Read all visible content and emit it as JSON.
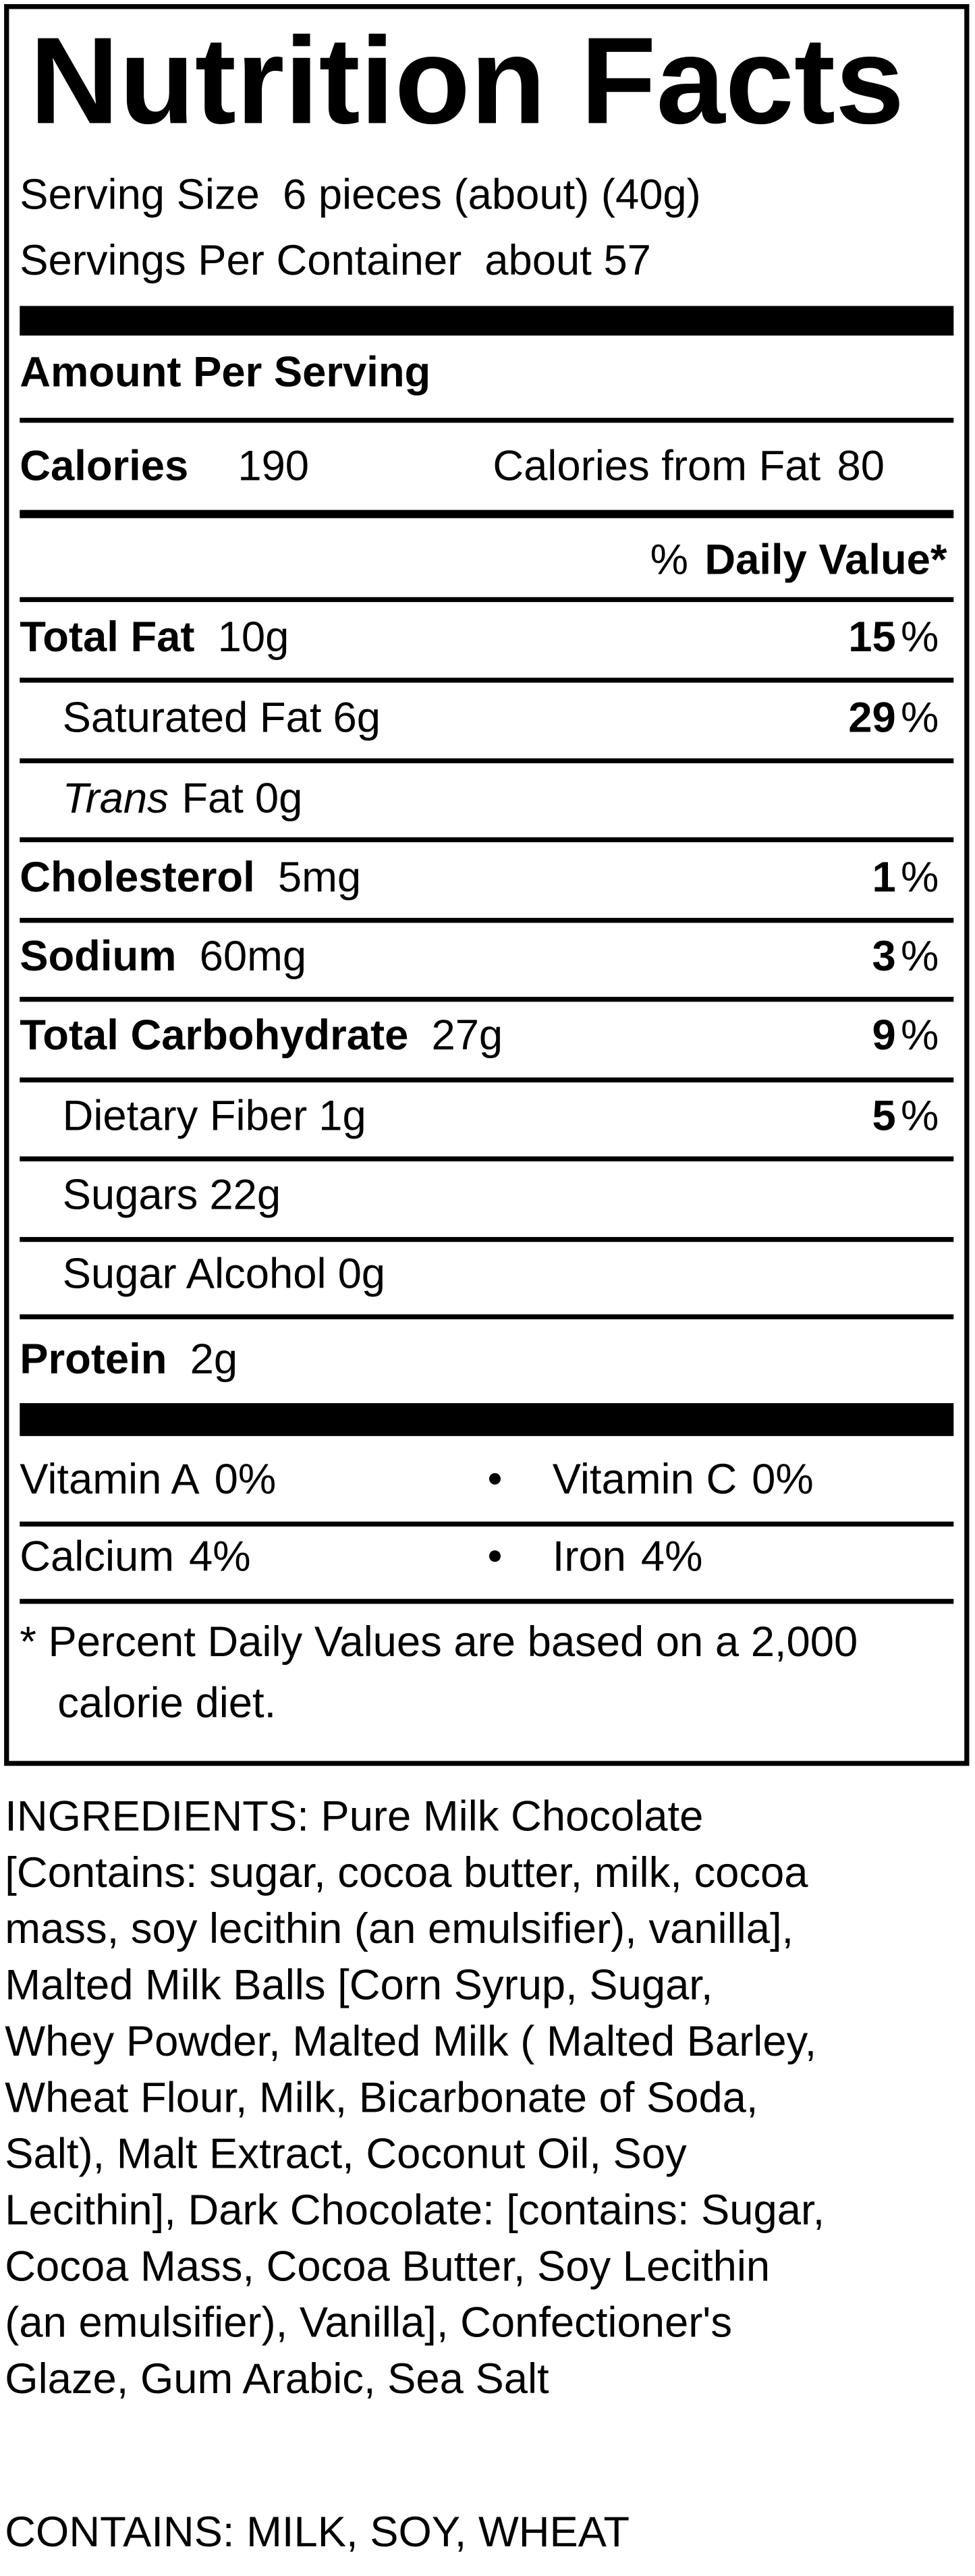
{
  "label": {
    "title": "Nutrition Facts",
    "serving_size_label": "Serving Size",
    "serving_size": "6  pieces (about)  (40g)",
    "servings_label": "Servings Per Container",
    "servings": "about 57",
    "amount_per_serving": "Amount Per Serving",
    "calories_label": "Calories",
    "calories": 190,
    "calories_from_fat_label": "Calories from Fat",
    "calories_from_fat": 80,
    "percent_sign": "%",
    "daily_value_label": "Daily Value*",
    "nutrients": [
      {
        "name": "Total Fat",
        "amount": "10g",
        "dv": 15,
        "bold": true
      },
      {
        "name": "Saturated Fat",
        "amount": "6g",
        "dv": 29,
        "indent": true
      },
      {
        "prefix": "Trans",
        "name": "Fat",
        "amount": "0g",
        "indent": true
      },
      {
        "name": "Cholesterol",
        "amount": "5mg",
        "dv": 1,
        "bold": true
      },
      {
        "name": "Sodium",
        "amount": "60mg",
        "dv": 3,
        "bold": true
      },
      {
        "name": "Total Carbohydrate",
        "amount": "27g",
        "dv": 9,
        "bold": true
      },
      {
        "name": "Dietary Fiber",
        "amount": "1g",
        "dv": 5,
        "indent": true
      },
      {
        "name": "Sugars",
        "amount": "22g",
        "indent": true
      },
      {
        "name": "Sugar Alcohol",
        "amount": "0g",
        "indent": true
      },
      {
        "name": "Protein",
        "amount": "2g",
        "bold": true
      }
    ],
    "vitamins": [
      {
        "name": "Vitamin A",
        "value": "0%"
      },
      {
        "name": "Vitamin C",
        "value": "0%"
      },
      {
        "name": "Calcium",
        "value": "4%"
      },
      {
        "name": "Iron",
        "value": "4%"
      }
    ],
    "footnote": [
      "* Percent Daily Values are based on a 2,000",
      "calorie diet."
    ]
  },
  "ingredients": [
    "INGREDIENTS: Pure Milk Chocolate",
    "[Contains: sugar, cocoa butter, milk, cocoa",
    "mass, soy lecithin (an emulsifier), vanilla],",
    "Malted Milk Balls [Corn Syrup, Sugar,",
    "Whey Powder, Malted Milk ( Malted Barley,",
    "Wheat Flour, Milk, Bicarbonate of Soda,",
    "Salt), Malt Extract, Coconut Oil, Soy",
    "Lecithin], Dark Chocolate: [contains: Sugar,",
    "Cocoa Mass, Cocoa Butter, Soy Lecithin",
    "(an emulsifier), Vanilla], Confectioner's",
    "Glaze, Gum Arabic, Sea Salt"
  ],
  "contains": "CONTAINS: MILK, SOY, WHEAT"
}
